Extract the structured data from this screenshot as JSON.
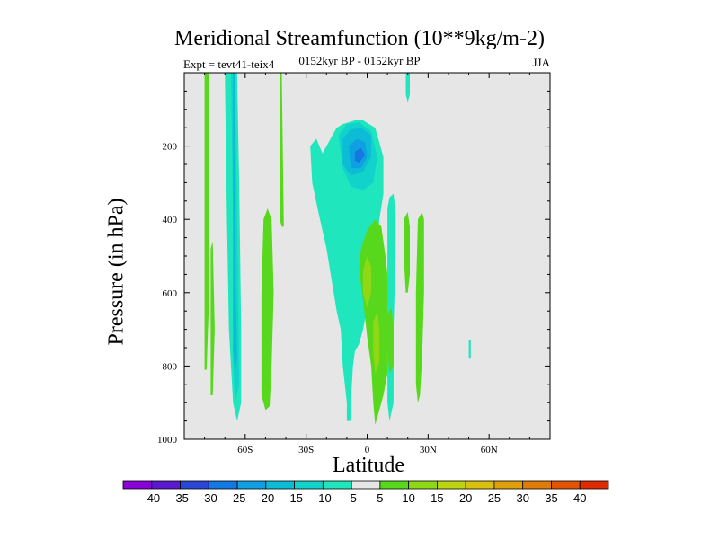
{
  "chart_data": {
    "type": "contour",
    "title": "Meridional Streamfunction (10**9kg/m-2)",
    "left_annotation": "Expt = tevt41-teix4",
    "center_annotation": "0152kyr BP - 0152kyr BP",
    "right_annotation": "JJA",
    "xlabel": "Latitude",
    "ylabel": "Pressure (in hPa)",
    "xlim": [
      -90,
      90
    ],
    "ylim": [
      1000,
      0
    ],
    "x_ticks": [
      {
        "value": -60,
        "label": "60S"
      },
      {
        "value": -30,
        "label": "30S"
      },
      {
        "value": 0,
        "label": "0"
      },
      {
        "value": 30,
        "label": "30N"
      },
      {
        "value": 60,
        "label": "60N"
      }
    ],
    "y_ticks": [
      {
        "value": 200,
        "label": "200"
      },
      {
        "value": 400,
        "label": "400"
      },
      {
        "value": 600,
        "label": "600"
      },
      {
        "value": 800,
        "label": "800"
      },
      {
        "value": 1000,
        "label": "1000"
      }
    ],
    "colorbar": {
      "levels": [
        "-40",
        "-35",
        "-30",
        "-25",
        "-20",
        "-15",
        "-10",
        "-5",
        "5",
        "10",
        "15",
        "20",
        "25",
        "30",
        "35",
        "40"
      ],
      "colors": [
        "#8a00d8",
        "#5a18d0",
        "#2a46d6",
        "#1478e2",
        "#10a0e2",
        "#0cbcd6",
        "#12d2cc",
        "#20e6be",
        "#e6e6e6",
        "#58d81c",
        "#90d816",
        "#bcd412",
        "#dac00e",
        "#e0a00a",
        "#e07c08",
        "#e25404",
        "#e02a00"
      ]
    },
    "regions": [
      {
        "name": "band-far-south-green",
        "fill": "#58d81c",
        "points": [
          [
            -80,
            0
          ],
          [
            -78,
            0
          ],
          [
            -78,
            300
          ],
          [
            -78,
            650
          ],
          [
            -79,
            810
          ],
          [
            -80,
            810
          ]
        ]
      },
      {
        "name": "band-far-south-green-2",
        "fill": "#58d81c",
        "points": [
          [
            -77,
            480
          ],
          [
            -76,
            460
          ],
          [
            -75,
            700
          ],
          [
            -76,
            880
          ],
          [
            -77,
            880
          ]
        ]
      },
      {
        "name": "band-southern-cyan",
        "fill": "#20e6be",
        "points": [
          [
            -70,
            0
          ],
          [
            -64,
            0
          ],
          [
            -63,
            300
          ],
          [
            -62,
            700
          ],
          [
            -62,
            900
          ],
          [
            -64,
            950
          ],
          [
            -66,
            900
          ],
          [
            -68,
            700
          ],
          [
            -69,
            400
          ]
        ]
      },
      {
        "name": "band-southern-cyan-dark",
        "fill": "#12d2cc",
        "points": [
          [
            -67,
            0
          ],
          [
            -65,
            0
          ],
          [
            -64,
            400
          ],
          [
            -63,
            850
          ],
          [
            -65,
            900
          ],
          [
            -66,
            800
          ],
          [
            -66,
            400
          ]
        ]
      },
      {
        "name": "band-southern-core",
        "fill": "#0cbcd6",
        "points": [
          [
            -66,
            0
          ],
          [
            -65,
            0
          ],
          [
            -65,
            500
          ],
          [
            -64,
            780
          ],
          [
            -65,
            820
          ],
          [
            -66,
            760
          ]
        ]
      },
      {
        "name": "blob-south-midlat-green",
        "fill": "#58d81c",
        "points": [
          [
            -51,
            400
          ],
          [
            -49,
            370
          ],
          [
            -47,
            400
          ],
          [
            -46,
            600
          ],
          [
            -47,
            800
          ],
          [
            -48,
            910
          ],
          [
            -50,
            920
          ],
          [
            -52,
            880
          ],
          [
            -52,
            600
          ]
        ]
      },
      {
        "name": "band-south-subtropics-green",
        "fill": "#58d81c",
        "points": [
          [
            -44,
            0
          ],
          [
            -43,
            0
          ],
          [
            -43,
            400
          ],
          [
            -42,
            420
          ],
          [
            -41,
            420
          ],
          [
            -42,
            0
          ]
        ]
      },
      {
        "name": "region-tropical-cyan",
        "fill": "#20e6be",
        "points": [
          [
            -28,
            200
          ],
          [
            -25,
            180
          ],
          [
            -22,
            220
          ],
          [
            -18,
            180
          ],
          [
            -15,
            150
          ],
          [
            -12,
            140
          ],
          [
            -6,
            130
          ],
          [
            -2,
            130
          ],
          [
            4,
            150
          ],
          [
            8,
            230
          ],
          [
            8,
            330
          ],
          [
            6,
            400
          ],
          [
            4,
            520
          ],
          [
            2,
            580
          ],
          [
            0,
            640
          ],
          [
            -2,
            700
          ],
          [
            -4,
            740
          ],
          [
            -6,
            760
          ],
          [
            -7,
            800
          ],
          [
            -8,
            900
          ],
          [
            -8,
            950
          ],
          [
            -10,
            950
          ],
          [
            -10,
            900
          ],
          [
            -12,
            800
          ],
          [
            -13,
            700
          ],
          [
            -15,
            650
          ],
          [
            -20,
            480
          ],
          [
            -24,
            380
          ],
          [
            -27,
            300
          ]
        ]
      },
      {
        "name": "region-tropical-cyan-inner",
        "fill": "#12d2cc",
        "points": [
          [
            -14,
            170
          ],
          [
            -10,
            140
          ],
          [
            -4,
            135
          ],
          [
            2,
            160
          ],
          [
            5,
            230
          ],
          [
            3,
            300
          ],
          [
            -2,
            320
          ],
          [
            -8,
            310
          ],
          [
            -12,
            260
          ]
        ]
      },
      {
        "name": "region-tropical-blue",
        "fill": "#0cbcd6",
        "points": [
          [
            -12,
            180
          ],
          [
            -8,
            155
          ],
          [
            -3,
            150
          ],
          [
            2,
            170
          ],
          [
            2,
            230
          ],
          [
            -2,
            270
          ],
          [
            -8,
            280
          ],
          [
            -12,
            250
          ]
        ]
      },
      {
        "name": "region-tropical-deep",
        "fill": "#10a0e2",
        "points": [
          [
            -9,
            200
          ],
          [
            -5,
            180
          ],
          [
            -1,
            190
          ],
          [
            0,
            230
          ],
          [
            -3,
            260
          ],
          [
            -8,
            260
          ]
        ]
      },
      {
        "name": "region-tropical-core",
        "fill": "#1478e2",
        "points": [
          [
            -6,
            215
          ],
          [
            -3,
            205
          ],
          [
            -1,
            225
          ],
          [
            -4,
            245
          ],
          [
            -6,
            240
          ]
        ]
      },
      {
        "name": "region-north-tropics-green",
        "fill": "#58d81c",
        "points": [
          [
            -3,
            480
          ],
          [
            0,
            430
          ],
          [
            4,
            400
          ],
          [
            7,
            420
          ],
          [
            9,
            500
          ],
          [
            11,
            600
          ],
          [
            12,
            700
          ],
          [
            10,
            820
          ],
          [
            8,
            880
          ],
          [
            6,
            920
          ],
          [
            4,
            960
          ],
          [
            3,
            900
          ],
          [
            2,
            800
          ],
          [
            0,
            720
          ],
          [
            -2,
            620
          ],
          [
            -4,
            540
          ]
        ]
      },
      {
        "name": "region-north-tropics-yellow-top",
        "fill": "#90d816",
        "points": [
          [
            -2,
            540
          ],
          [
            0,
            500
          ],
          [
            2,
            530
          ],
          [
            2,
            600
          ],
          [
            0,
            640
          ],
          [
            -2,
            600
          ]
        ]
      },
      {
        "name": "region-north-tropics-yellow-low",
        "fill": "#90d816",
        "points": [
          [
            3,
            680
          ],
          [
            5,
            650
          ],
          [
            6,
            700
          ],
          [
            6,
            790
          ],
          [
            4,
            820
          ],
          [
            3,
            760
          ]
        ]
      },
      {
        "name": "band-north-cyan",
        "fill": "#20e6be",
        "points": [
          [
            10,
            370
          ],
          [
            11,
            340
          ],
          [
            13,
            330
          ],
          [
            14,
            380
          ],
          [
            14,
            500
          ],
          [
            13,
            700
          ],
          [
            13,
            900
          ],
          [
            11,
            950
          ],
          [
            10,
            900
          ],
          [
            10,
            600
          ]
        ]
      },
      {
        "name": "band-north-cyan-top",
        "fill": "#20e6be",
        "points": [
          [
            19,
            0
          ],
          [
            21,
            0
          ],
          [
            21,
            60
          ],
          [
            20,
            80
          ],
          [
            19,
            60
          ]
        ]
      },
      {
        "name": "band-north-green",
        "fill": "#58d81c",
        "points": [
          [
            25,
            400
          ],
          [
            27,
            380
          ],
          [
            28,
            400
          ],
          [
            28,
            600
          ],
          [
            27,
            780
          ],
          [
            26,
            880
          ],
          [
            25,
            900
          ],
          [
            24,
            850
          ],
          [
            24,
            600
          ]
        ]
      },
      {
        "name": "band-north-green-small",
        "fill": "#58d81c",
        "points": [
          [
            18,
            400
          ],
          [
            20,
            380
          ],
          [
            21,
            420
          ],
          [
            21,
            550
          ],
          [
            20,
            600
          ],
          [
            19,
            600
          ],
          [
            18,
            500
          ]
        ]
      },
      {
        "name": "band-north-green-small-2",
        "fill": "#58d81c",
        "points": [
          [
            10,
            660
          ],
          [
            12,
            640
          ],
          [
            13,
            700
          ],
          [
            13,
            800
          ],
          [
            11,
            820
          ],
          [
            10,
            760
          ]
        ]
      },
      {
        "name": "speck-north-cyan",
        "fill": "#20e6be",
        "points": [
          [
            50,
            730
          ],
          [
            51,
            730
          ],
          [
            51,
            780
          ],
          [
            50,
            780
          ]
        ]
      }
    ]
  }
}
